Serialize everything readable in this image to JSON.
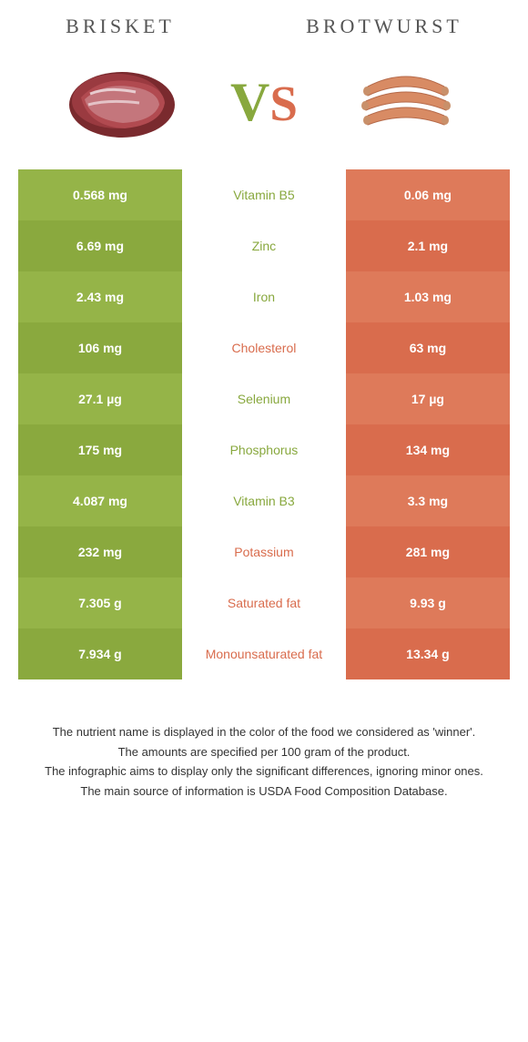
{
  "header": {
    "left_title": "BRISKET",
    "right_title": "BROTWURST"
  },
  "vs": {
    "v": "V",
    "s": "S",
    "v_color": "#88a83e",
    "s_color": "#d96c4d"
  },
  "colors": {
    "left_a": "#95b448",
    "left_b": "#8aa93e",
    "right_a": "#de7a5a",
    "right_b": "#d96c4d",
    "mid_left": "#88a83e",
    "mid_right": "#d96c4d"
  },
  "rows": [
    {
      "nutrient": "Vitamin B5",
      "winner": "left",
      "left": "0.568 mg",
      "right": "0.06 mg"
    },
    {
      "nutrient": "Zinc",
      "winner": "left",
      "left": "6.69 mg",
      "right": "2.1 mg"
    },
    {
      "nutrient": "Iron",
      "winner": "left",
      "left": "2.43 mg",
      "right": "1.03 mg"
    },
    {
      "nutrient": "Cholesterol",
      "winner": "right",
      "left": "106 mg",
      "right": "63 mg"
    },
    {
      "nutrient": "Selenium",
      "winner": "left",
      "left": "27.1 µg",
      "right": "17 µg"
    },
    {
      "nutrient": "Phosphorus",
      "winner": "left",
      "left": "175 mg",
      "right": "134 mg"
    },
    {
      "nutrient": "Vitamin B3",
      "winner": "left",
      "left": "4.087 mg",
      "right": "3.3 mg"
    },
    {
      "nutrient": "Potassium",
      "winner": "right",
      "left": "232 mg",
      "right": "281 mg"
    },
    {
      "nutrient": "Saturated fat",
      "winner": "right",
      "left": "7.305 g",
      "right": "9.93 g"
    },
    {
      "nutrient": "Monounsaturated fat",
      "winner": "right",
      "left": "7.934 g",
      "right": "13.34 g"
    }
  ],
  "notes": [
    "The nutrient name is displayed in the color of the food we considered as 'winner'.",
    "The amounts are specified per 100 gram of the product.",
    "The infographic aims to display only the significant differences, ignoring minor ones.",
    "The main source of information is USDA Food Composition Database."
  ]
}
